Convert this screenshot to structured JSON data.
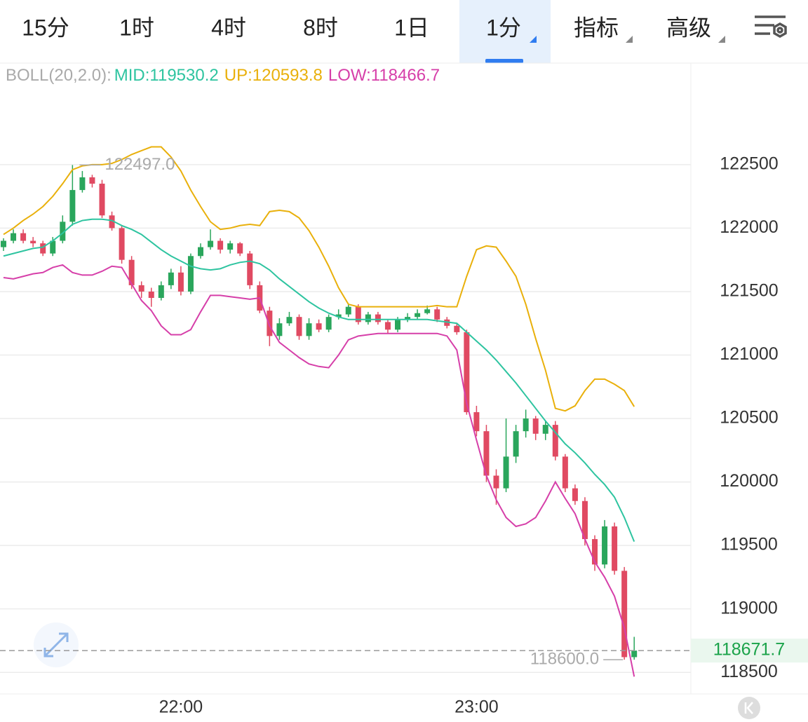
{
  "tabs": [
    "15分",
    "1时",
    "4时",
    "8时",
    "1日",
    "1分",
    "指标",
    "高级"
  ],
  "chart_data": {
    "type": "candlestick",
    "indicator": "BOLL(20,2.0):",
    "categories": [
      null,
      null,
      null,
      null,
      null,
      null,
      null,
      null,
      null,
      null,
      null,
      null,
      null,
      null,
      null,
      null,
      null,
      null,
      "22:00",
      null,
      null,
      null,
      null,
      null,
      null,
      null,
      null,
      null,
      null,
      null,
      null,
      null,
      null,
      null,
      null,
      null,
      null,
      null,
      null,
      null,
      null,
      null,
      null,
      null,
      null,
      null,
      null,
      null,
      "23:00",
      null,
      null,
      null,
      null,
      null,
      null,
      null,
      null,
      null,
      null,
      null,
      null,
      null,
      null,
      null,
      null
    ],
    "open": [
      121850,
      121900,
      121960,
      121900,
      121880,
      121800,
      121900,
      122050,
      122300,
      122400,
      122350,
      122100,
      122000,
      121750,
      121550,
      121500,
      121450,
      121550,
      121650,
      121500,
      121780,
      121850,
      121900,
      121830,
      121880,
      121800,
      121550,
      121350,
      121150,
      121250,
      121300,
      121150,
      121250,
      121200,
      121300,
      121320,
      121380,
      121260,
      121320,
      121260,
      121200,
      121280,
      121300,
      121330,
      121360,
      121280,
      121230,
      121180,
      120550,
      120400,
      120050,
      119950,
      120200,
      120400,
      120500,
      120380,
      120450,
      120200,
      119950,
      119850,
      119550,
      119350,
      119650,
      119300,
      118620
    ],
    "high": [
      121920,
      121990,
      121990,
      121930,
      121900,
      121930,
      122100,
      122497,
      122450,
      122420,
      122380,
      122130,
      122020,
      121780,
      121580,
      121530,
      121580,
      121680,
      121700,
      121800,
      121880,
      121990,
      121920,
      121900,
      121890,
      121820,
      121580,
      121380,
      121290,
      121340,
      121320,
      121290,
      121280,
      121320,
      121360,
      121400,
      121400,
      121340,
      121340,
      121280,
      121300,
      121330,
      121360,
      121390,
      121380,
      121300,
      121250,
      121200,
      120600,
      120450,
      120100,
      120500,
      120450,
      120570,
      120520,
      120480,
      120480,
      120220,
      119980,
      119880,
      119580,
      119700,
      119680,
      119330,
      118780
    ],
    "low": [
      121820,
      121880,
      121880,
      121850,
      121780,
      121780,
      121880,
      122020,
      122280,
      122320,
      122080,
      121980,
      121720,
      121520,
      121450,
      121380,
      121430,
      121520,
      121470,
      121480,
      121760,
      121830,
      121800,
      121800,
      121780,
      121520,
      121330,
      121070,
      121120,
      121230,
      121120,
      121120,
      121180,
      121180,
      121280,
      121300,
      121240,
      121240,
      121240,
      121170,
      121180,
      121260,
      121280,
      121320,
      121260,
      121210,
      121160,
      120530,
      120360,
      120000,
      119820,
      119920,
      120150,
      120350,
      120330,
      120330,
      120170,
      119920,
      119820,
      119500,
      119300,
      119320,
      119270,
      118600,
      118600
    ],
    "close": [
      121900,
      121960,
      121900,
      121880,
      121800,
      121900,
      122050,
      122300,
      122400,
      122350,
      122100,
      122000,
      121750,
      121550,
      121500,
      121450,
      121550,
      121650,
      121500,
      121780,
      121850,
      121900,
      121830,
      121880,
      121800,
      121550,
      121350,
      121150,
      121250,
      121300,
      121150,
      121250,
      121200,
      121300,
      121320,
      121380,
      121260,
      121320,
      121260,
      121200,
      121280,
      121300,
      121330,
      121360,
      121280,
      121230,
      121180,
      120550,
      120400,
      120050,
      119950,
      120200,
      120400,
      120500,
      120380,
      120450,
      120200,
      119950,
      119850,
      119550,
      119350,
      119650,
      119300,
      118620,
      118671.7
    ],
    "up_color": "#2aa65c",
    "down_color": "#e04a62",
    "series": [
      {
        "label": "MID:119530.2",
        "color": "#2ec4a0",
        "values": [
          121780,
          121800,
          121820,
          121840,
          121850,
          121900,
          121960,
          122030,
          122060,
          122070,
          122070,
          122060,
          122020,
          121990,
          121950,
          121890,
          121830,
          121780,
          121740,
          121700,
          121680,
          121670,
          121680,
          121710,
          121730,
          121740,
          121720,
          121670,
          121600,
          121540,
          121480,
          121420,
          121370,
          121330,
          121300,
          121280,
          121280,
          121280,
          121280,
          121280,
          121280,
          121280,
          121280,
          121280,
          121270,
          121260,
          121250,
          121180,
          121110,
          121040,
          120960,
          120870,
          120780,
          120680,
          120580,
          120480,
          120390,
          120300,
          120230,
          120150,
          120060,
          119980,
          119880,
          119720,
          119530.2
        ]
      },
      {
        "label": "UP:120593.8",
        "color": "#e9b00b",
        "values": [
          121950,
          122000,
          122060,
          122110,
          122170,
          122250,
          122350,
          122460,
          122490,
          122500,
          122500,
          122510,
          122540,
          122580,
          122610,
          122640,
          122640,
          122560,
          122450,
          122300,
          122170,
          122050,
          121990,
          122000,
          122020,
          122030,
          122020,
          122130,
          122140,
          122130,
          122080,
          121980,
          121850,
          121700,
          121530,
          121400,
          121380,
          121380,
          121380,
          121380,
          121380,
          121380,
          121380,
          121380,
          121390,
          121380,
          121380,
          121620,
          121830,
          121860,
          121850,
          121740,
          121620,
          121400,
          121130,
          120880,
          120580,
          120560,
          120600,
          120720,
          120810,
          120810,
          120770,
          120720,
          120593.8
        ]
      },
      {
        "label": "LOW:118466.7",
        "color": "#d63fa9",
        "values": [
          121610,
          121600,
          121620,
          121640,
          121650,
          121690,
          121710,
          121650,
          121630,
          121630,
          121660,
          121700,
          121690,
          121560,
          121430,
          121350,
          121230,
          121160,
          121160,
          121200,
          121340,
          121470,
          121470,
          121460,
          121450,
          121440,
          121450,
          121230,
          121100,
          121040,
          120980,
          120930,
          120910,
          120900,
          121000,
          121120,
          121150,
          121160,
          121170,
          121170,
          121170,
          121170,
          121170,
          121170,
          121170,
          121150,
          121040,
          120620,
          120330,
          120050,
          119860,
          119720,
          119650,
          119670,
          119720,
          119850,
          120000,
          119870,
          119750,
          119550,
          119370,
          119250,
          119100,
          118850,
          118466.7
        ]
      }
    ],
    "ylim": [
      118330,
      123300
    ],
    "yticks": [
      118500,
      119000,
      119500,
      120000,
      120500,
      121000,
      121500,
      122000,
      122500
    ],
    "grid": true,
    "last_price": {
      "value": 118671.7,
      "label": "118671.7"
    },
    "annotations": [
      {
        "index": 7,
        "value": 122497,
        "label": "122497.0"
      },
      {
        "index": 63,
        "value": 118600,
        "label": "118600.0"
      }
    ]
  }
}
